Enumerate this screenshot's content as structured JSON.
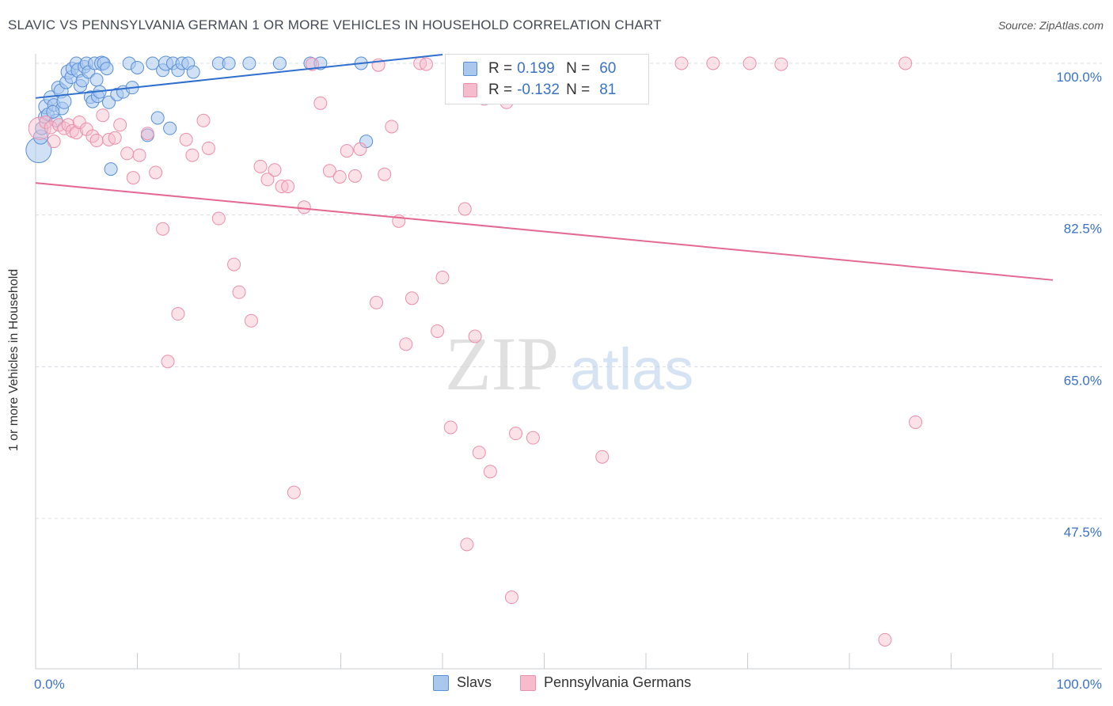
{
  "title": "SLAVIC VS PENNSYLVANIA GERMAN 1 OR MORE VEHICLES IN HOUSEHOLD CORRELATION CHART",
  "source": "Source: ZipAtlas.com",
  "watermark": {
    "zip": "ZIP",
    "atlas": "atlas"
  },
  "legend": {
    "r_label": "R =",
    "n_label": "N =",
    "rows": [
      {
        "r": "0.199",
        "n": "60"
      },
      {
        "r": "-0.132",
        "n": "81"
      }
    ]
  },
  "bottom_legend": [
    "Slavs",
    "Pennsylvania Germans"
  ],
  "colors": {
    "slavs_fill": "#aac8ee",
    "slavs_stroke": "#5a8fd6",
    "slavs_line": "#2f6fce",
    "pg_fill": "#f6bccd",
    "pg_stroke": "#ec8fab",
    "pg_line": "#e46a92",
    "axis_text": "#3a72c4",
    "grid": "#d8dce3"
  },
  "chart_data": {
    "type": "scatter",
    "title": "SLAVIC VS PENNSYLVANIA GERMAN 1 OR MORE VEHICLES IN HOUSEHOLD CORRELATION CHART",
    "xlabel": "",
    "ylabel": "1 or more Vehicles in Household",
    "xlim": [
      0,
      100
    ],
    "ylim": [
      31,
      101
    ],
    "x_tick_labels": [
      "0.0%",
      "100.0%"
    ],
    "y_ticks": [
      100.0,
      82.5,
      65.0,
      47.5
    ],
    "y_tick_labels": [
      "100.0%",
      "82.5%",
      "65.0%",
      "47.5%"
    ],
    "series": [
      {
        "name": "Slavs",
        "r": 0.199,
        "n": 60,
        "trend": {
          "x": [
            0,
            40
          ],
          "y": [
            96.0,
            101.0
          ]
        },
        "points": [
          [
            0.3,
            90.0,
            16
          ],
          [
            0.5,
            91.5,
            9
          ],
          [
            0.6,
            92.5,
            8
          ],
          [
            0.9,
            93.8,
            8
          ],
          [
            1.0,
            95.0,
            9
          ],
          [
            1.2,
            94.1,
            8
          ],
          [
            1.5,
            96.0,
            9
          ],
          [
            1.8,
            95.2,
            8
          ],
          [
            2.0,
            93.4,
            8
          ],
          [
            2.2,
            97.2,
            8
          ],
          [
            2.5,
            96.8,
            9
          ],
          [
            2.6,
            94.8,
            8
          ],
          [
            2.8,
            95.6,
            9
          ],
          [
            3.0,
            97.8,
            8
          ],
          [
            3.2,
            99.0,
            9
          ],
          [
            3.5,
            98.4,
            8
          ],
          [
            3.6,
            99.4,
            8
          ],
          [
            4.0,
            100.0,
            8
          ],
          [
            4.2,
            99.2,
            9
          ],
          [
            4.4,
            97.4,
            8
          ],
          [
            4.6,
            98.0,
            8
          ],
          [
            4.8,
            99.6,
            8
          ],
          [
            5.0,
            100.0,
            8
          ],
          [
            5.2,
            99.0,
            8
          ],
          [
            5.4,
            96.1,
            8
          ],
          [
            5.6,
            95.6,
            8
          ],
          [
            5.8,
            100.0,
            8
          ],
          [
            6.0,
            98.1,
            8
          ],
          [
            6.1,
            96.2,
            8
          ],
          [
            6.3,
            96.7,
            8
          ],
          [
            6.5,
            100.0,
            9
          ],
          [
            6.7,
            100.0,
            8
          ],
          [
            7.0,
            99.4,
            8
          ],
          [
            7.2,
            95.5,
            8
          ],
          [
            7.4,
            87.8,
            8
          ],
          [
            8.0,
            96.4,
            8
          ],
          [
            8.6,
            96.7,
            8
          ],
          [
            9.2,
            100.0,
            8
          ],
          [
            9.5,
            97.2,
            8
          ],
          [
            10.0,
            99.5,
            8
          ],
          [
            11.0,
            91.7,
            8
          ],
          [
            11.5,
            100.0,
            8
          ],
          [
            12.0,
            93.7,
            8
          ],
          [
            12.5,
            99.2,
            8
          ],
          [
            12.8,
            100.0,
            9
          ],
          [
            13.2,
            92.5,
            8
          ],
          [
            13.5,
            100.0,
            8
          ],
          [
            14.0,
            99.2,
            8
          ],
          [
            14.4,
            100.0,
            8
          ],
          [
            15.0,
            100.0,
            8
          ],
          [
            15.5,
            99.0,
            8
          ],
          [
            18.0,
            100.0,
            8
          ],
          [
            19.0,
            100.0,
            8
          ],
          [
            21.0,
            100.0,
            8
          ],
          [
            24.0,
            100.0,
            8
          ],
          [
            27.0,
            100.0,
            8
          ],
          [
            28.0,
            100.0,
            8
          ],
          [
            32.0,
            100.0,
            8
          ],
          [
            32.5,
            91.0,
            8
          ],
          [
            1.7,
            94.4,
            8
          ]
        ]
      },
      {
        "name": "Pennsylvania Germans",
        "r": -0.132,
        "n": 81,
        "trend": {
          "x": [
            0,
            100
          ],
          "y": [
            86.2,
            75.0
          ]
        },
        "points": [
          [
            0.4,
            92.5,
            14
          ],
          [
            1.0,
            93.2,
            8
          ],
          [
            1.5,
            92.6,
            8
          ],
          [
            1.8,
            91.0,
            8
          ],
          [
            2.3,
            92.9,
            8
          ],
          [
            2.8,
            92.5,
            8
          ],
          [
            3.2,
            92.9,
            8
          ],
          [
            3.6,
            92.2,
            8
          ],
          [
            4.0,
            92.0,
            8
          ],
          [
            4.3,
            93.2,
            8
          ],
          [
            5.0,
            92.4,
            8
          ],
          [
            5.6,
            91.6,
            8
          ],
          [
            6.0,
            91.1,
            8
          ],
          [
            6.6,
            94.0,
            8
          ],
          [
            7.2,
            91.2,
            8
          ],
          [
            7.8,
            91.4,
            8
          ],
          [
            8.3,
            92.9,
            8
          ],
          [
            9.0,
            89.6,
            8
          ],
          [
            9.6,
            86.8,
            8
          ],
          [
            10.2,
            89.4,
            8
          ],
          [
            11.0,
            91.9,
            8
          ],
          [
            11.8,
            87.4,
            8
          ],
          [
            12.5,
            80.9,
            8
          ],
          [
            13.0,
            65.6,
            8
          ],
          [
            14.0,
            71.1,
            8
          ],
          [
            14.8,
            91.2,
            8
          ],
          [
            15.4,
            89.4,
            8
          ],
          [
            16.5,
            93.4,
            8
          ],
          [
            17.0,
            90.2,
            8
          ],
          [
            18.0,
            82.1,
            8
          ],
          [
            19.5,
            76.8,
            8
          ],
          [
            20.0,
            73.6,
            8
          ],
          [
            21.2,
            70.3,
            8
          ],
          [
            22.1,
            88.1,
            8
          ],
          [
            22.8,
            86.6,
            8
          ],
          [
            23.5,
            87.7,
            8
          ],
          [
            24.2,
            85.8,
            8
          ],
          [
            24.8,
            85.8,
            8
          ],
          [
            25.4,
            50.5,
            8
          ],
          [
            26.4,
            83.4,
            8
          ],
          [
            27.2,
            99.9,
            8
          ],
          [
            28.0,
            95.4,
            8
          ],
          [
            28.9,
            87.6,
            8
          ],
          [
            29.9,
            86.9,
            8
          ],
          [
            30.6,
            89.9,
            8
          ],
          [
            31.4,
            87.0,
            8
          ],
          [
            31.9,
            90.1,
            8
          ],
          [
            33.5,
            72.4,
            8
          ],
          [
            33.7,
            99.8,
            8
          ],
          [
            34.3,
            87.2,
            8
          ],
          [
            35.0,
            92.7,
            8
          ],
          [
            35.7,
            81.8,
            8
          ],
          [
            36.4,
            67.6,
            8
          ],
          [
            37.0,
            72.9,
            8
          ],
          [
            37.8,
            100.0,
            8
          ],
          [
            38.4,
            99.9,
            8
          ],
          [
            39.5,
            69.1,
            8
          ],
          [
            40.0,
            75.3,
            8
          ],
          [
            40.8,
            58.0,
            8
          ],
          [
            41.5,
            100.0,
            8
          ],
          [
            42.2,
            83.2,
            8
          ],
          [
            42.4,
            44.5,
            8
          ],
          [
            43.2,
            68.5,
            8
          ],
          [
            43.6,
            55.1,
            8
          ],
          [
            44.1,
            95.9,
            8
          ],
          [
            44.7,
            52.9,
            8
          ],
          [
            45.6,
            96.1,
            8
          ],
          [
            46.3,
            95.5,
            8
          ],
          [
            46.8,
            38.4,
            8
          ],
          [
            47.2,
            57.3,
            8
          ],
          [
            48.9,
            56.8,
            8
          ],
          [
            50.2,
            100.0,
            8
          ],
          [
            55.7,
            54.6,
            8
          ],
          [
            59.0,
            100.0,
            8
          ],
          [
            63.5,
            100.0,
            8
          ],
          [
            66.6,
            100.0,
            8
          ],
          [
            70.2,
            100.0,
            8
          ],
          [
            73.3,
            99.9,
            8
          ],
          [
            83.5,
            33.5,
            8
          ],
          [
            85.5,
            100.0,
            8
          ],
          [
            86.5,
            58.6,
            8
          ]
        ]
      }
    ]
  }
}
